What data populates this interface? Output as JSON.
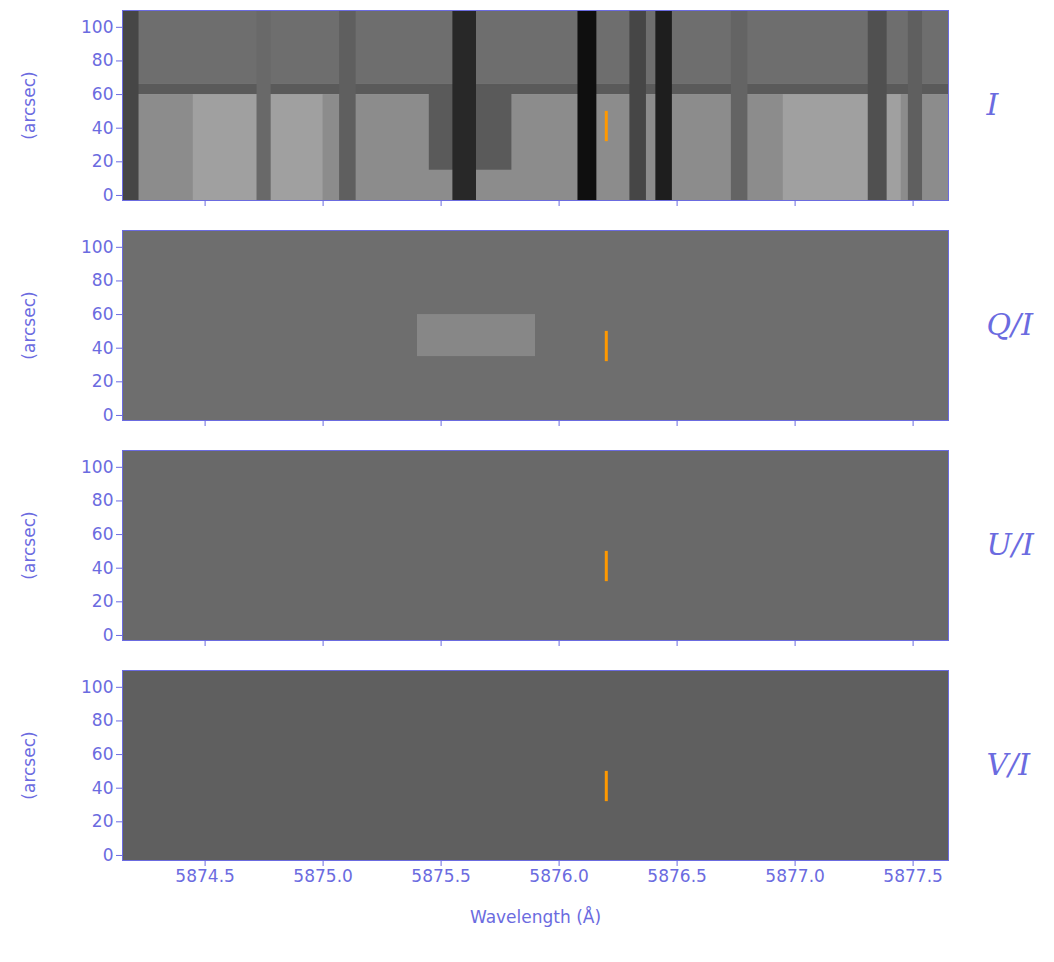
{
  "chart_data": [
    {
      "type": "heatmap",
      "panel_label": "I",
      "y_label": "(arcsec)",
      "tick_labels": "y",
      "xlim": [
        5874.15,
        5877.65
      ],
      "ylim": [
        -3,
        110
      ],
      "xticks": [
        5874.5,
        {
          "value": 5875,
          "label": "5875.0"
        },
        5875.5,
        {
          "value": 5876,
          "label": "5876.0"
        },
        5876.5,
        {
          "value": 5877,
          "label": "5877.0"
        },
        5877.5
      ],
      "yticks": [
        0,
        20,
        40,
        60,
        80,
        100
      ],
      "color_range": [
        0,
        255
      ],
      "cells": [
        {
          "x1": 5874.15,
          "x2": 5877.65,
          "y1": -3,
          "y2": 60,
          "value": 140
        },
        {
          "x1": 5874.15,
          "x2": 5877.65,
          "y1": 60,
          "y2": 66,
          "value": 90
        },
        {
          "x1": 5874.15,
          "x2": 5877.65,
          "y1": 66,
          "y2": 110,
          "value": 110
        },
        {
          "x1": 5874.45,
          "x2": 5875.0,
          "y1": -3,
          "y2": 60,
          "value": 160
        },
        {
          "x1": 5876.95,
          "x2": 5877.45,
          "y1": -3,
          "y2": 60,
          "value": 160
        },
        {
          "x1": 5874.15,
          "x2": 5874.22,
          "y1": -3,
          "y2": 110,
          "value": 70
        },
        {
          "x1": 5874.72,
          "x2": 5874.78,
          "y1": -3,
          "y2": 110,
          "value": 105
        },
        {
          "x1": 5875.07,
          "x2": 5875.14,
          "y1": -3,
          "y2": 110,
          "value": 95
        },
        {
          "x1": 5875.45,
          "x2": 5875.8,
          "y1": 15,
          "y2": 65,
          "value": 90
        },
        {
          "x1": 5875.55,
          "x2": 5875.65,
          "y1": -3,
          "y2": 110,
          "value": 40
        },
        {
          "x1": 5876.08,
          "x2": 5876.16,
          "y1": -3,
          "y2": 110,
          "value": 15
        },
        {
          "x1": 5876.3,
          "x2": 5876.37,
          "y1": -3,
          "y2": 110,
          "value": 70
        },
        {
          "x1": 5876.41,
          "x2": 5876.48,
          "y1": -3,
          "y2": 110,
          "value": 30
        },
        {
          "x1": 5876.73,
          "x2": 5876.8,
          "y1": -3,
          "y2": 110,
          "value": 100
        },
        {
          "x1": 5877.31,
          "x2": 5877.39,
          "y1": -3,
          "y2": 110,
          "value": 80
        },
        {
          "x1": 5877.48,
          "x2": 5877.54,
          "y1": -3,
          "y2": 110,
          "value": 95
        }
      ],
      "highlight": {
        "x": 5876.2,
        "y": [
          32,
          50
        ],
        "color": "#ff9900"
      }
    },
    {
      "type": "heatmap",
      "panel_label": "Q/I",
      "y_label": "(arcsec)",
      "tick_labels": "y",
      "xlim": [
        5874.15,
        5877.65
      ],
      "ylim": [
        -3,
        110
      ],
      "xticks": [
        5874.5,
        {
          "value": 5875,
          "label": "5875.0"
        },
        5875.5,
        {
          "value": 5876,
          "label": "5876.0"
        },
        5876.5,
        {
          "value": 5877,
          "label": "5877.0"
        },
        5877.5
      ],
      "yticks": [
        0,
        20,
        40,
        60,
        80,
        100
      ],
      "color_range": [
        0,
        255
      ],
      "cells": [
        {
          "x1": 5874.15,
          "x2": 5877.65,
          "y1": -3,
          "y2": 110,
          "value": 110
        },
        {
          "x1": 5875.4,
          "x2": 5875.9,
          "y1": 35,
          "y2": 60,
          "value": 135
        }
      ],
      "highlight": {
        "x": 5876.2,
        "y": [
          32,
          50
        ],
        "color": "#ff9900"
      }
    },
    {
      "type": "heatmap",
      "panel_label": "U/I",
      "y_label": "(arcsec)",
      "tick_labels": "y",
      "xlim": [
        5874.15,
        5877.65
      ],
      "ylim": [
        -3,
        110
      ],
      "xticks": [
        5874.5,
        {
          "value": 5875,
          "label": "5875.0"
        },
        5875.5,
        {
          "value": 5876,
          "label": "5876.0"
        },
        5876.5,
        {
          "value": 5877,
          "label": "5877.0"
        },
        5877.5
      ],
      "yticks": [
        0,
        20,
        40,
        60,
        80,
        100
      ],
      "color_range": [
        0,
        255
      ],
      "cells": [
        {
          "x1": 5874.15,
          "x2": 5877.65,
          "y1": -3,
          "y2": 110,
          "value": 105
        }
      ],
      "highlight": {
        "x": 5876.2,
        "y": [
          32,
          50
        ],
        "color": "#ff9900"
      }
    },
    {
      "type": "heatmap",
      "panel_label": "V/I",
      "y_label": "(arcsec)",
      "x_label": "Wavelength (Å)",
      "xlim": [
        5874.15,
        5877.65
      ],
      "ylim": [
        -3,
        110
      ],
      "xticks": [
        5874.5,
        {
          "value": 5875,
          "label": "5875.0"
        },
        5875.5,
        {
          "value": 5876,
          "label": "5876.0"
        },
        5876.5,
        {
          "value": 5877,
          "label": "5877.0"
        },
        5877.5
      ],
      "yticks": [
        0,
        20,
        40,
        60,
        80,
        100
      ],
      "color_range": [
        0,
        255
      ],
      "cells": [
        {
          "x1": 5874.15,
          "x2": 5877.65,
          "y1": -3,
          "y2": 110,
          "value": 95
        }
      ],
      "highlight": {
        "x": 5876.2,
        "y": [
          32,
          50
        ],
        "color": "#ff9900"
      }
    }
  ]
}
